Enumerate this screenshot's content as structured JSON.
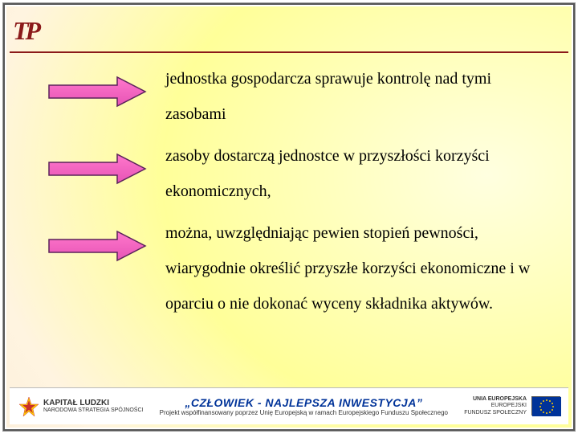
{
  "logo_text": "TP",
  "bullets": [
    "jednostka gospodarcza sprawuje kontrolę nad tymi zasobami",
    "zasoby dostarczą jednostce w przyszłości korzyści ekonomicznych,",
    "można, uwzględniając pewien stopień pewności, wiarygodnie określić przyszłe korzyści ekonomiczne i w oparciu o nie dokonać wyceny składnika aktywów."
  ],
  "arrow": {
    "fill_start": "#ff77cc",
    "fill_end": "#e754b5",
    "stroke": "#5a235a",
    "width": 130,
    "height": 40
  },
  "footer": {
    "kl_title": "KAPITAŁ LUDZKI",
    "kl_sub": "NARODOWA STRATEGIA SPÓJNOŚCI",
    "title": "„CZŁOWIEK  -  NAJLEPSZA  INWESTYCJA”",
    "subtitle": "Projekt współfinansowany poprzez Unię Europejską w ramach Europejskiego Funduszu Społecznego",
    "eu_line1": "UNIA EUROPEJSKA",
    "eu_line2": "EUROPEJSKI",
    "eu_line3": "FUNDUSZ SPOŁECZNY"
  },
  "colors": {
    "accent_line": "#8b1a1a",
    "eu_blue": "#003399",
    "star_yellow": "#ffcc00"
  }
}
